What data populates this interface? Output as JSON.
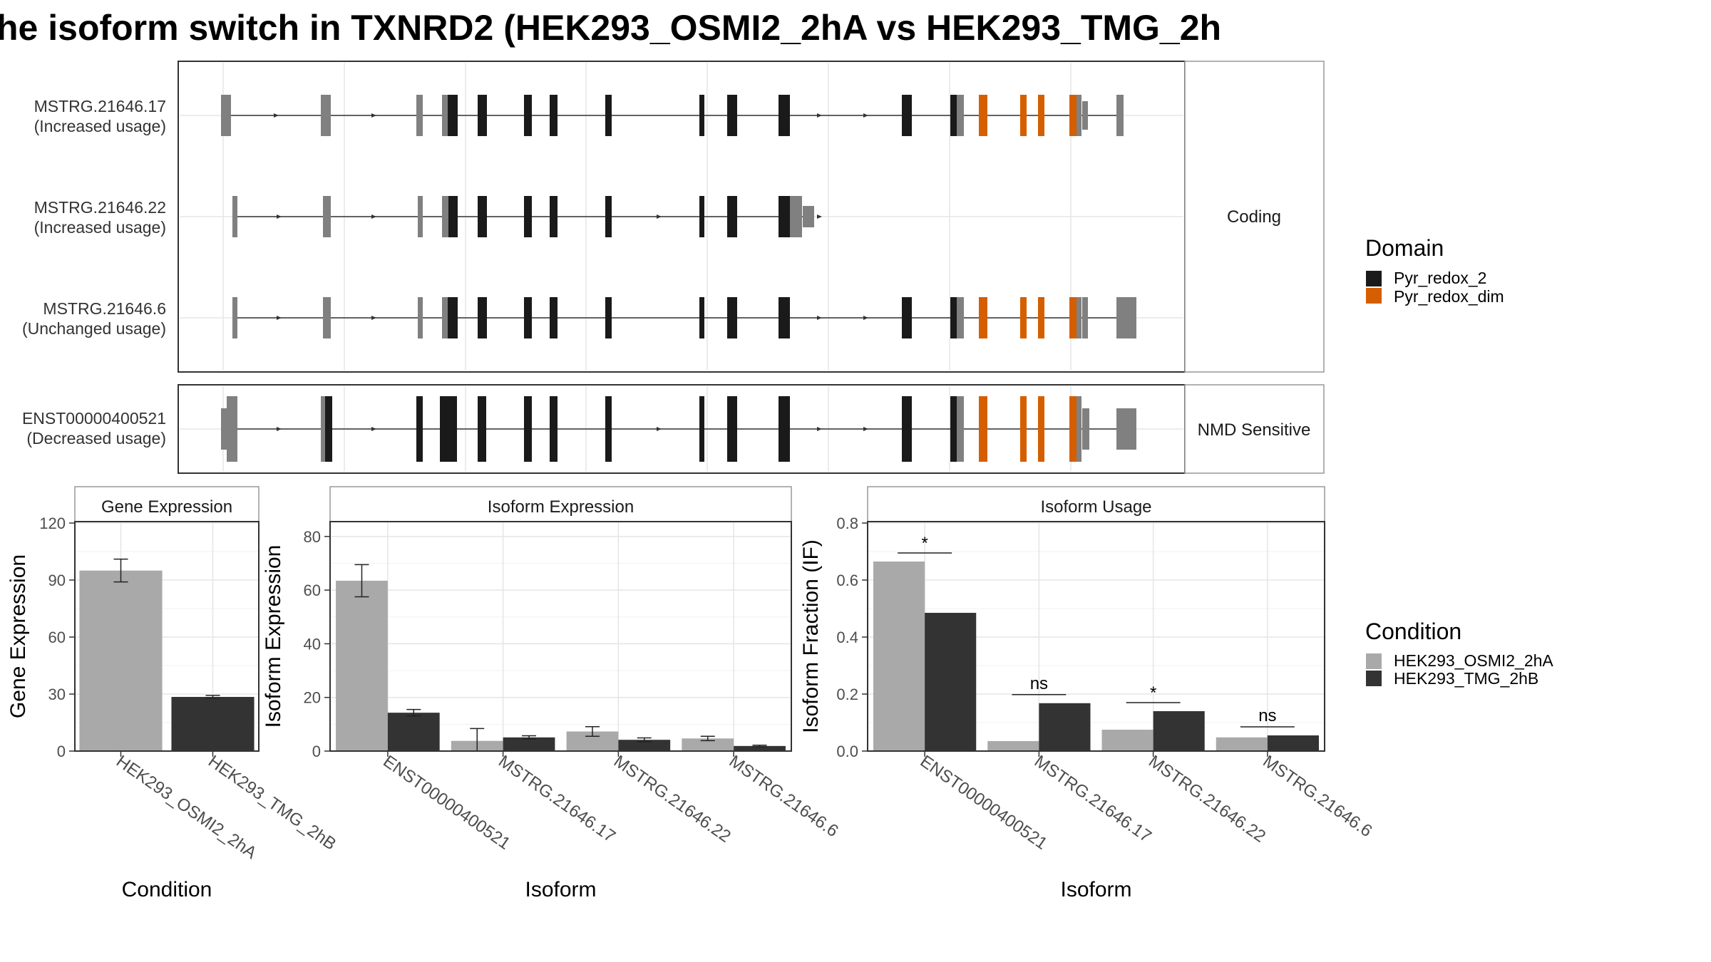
{
  "title": "he isoform switch in TXNRD2 (HEK293_OSMI2_2hA vs HEK293_TMG_2h",
  "colors": {
    "domain_pyr_redox_2": "#1a1a1a",
    "domain_pyr_redox_dim": "#d55e00",
    "cond_a": "#a9a9a9",
    "cond_b": "#333333",
    "exon_plain": "#808080",
    "panel_border": "#333333",
    "strip_border": "#999999",
    "grid": "#e5e5e5"
  },
  "transcripts": {
    "groups": [
      {
        "label": "Coding",
        "rows": [
          0,
          1,
          2
        ]
      },
      {
        "label": "NMD Sensitive",
        "rows": [
          3
        ]
      }
    ],
    "rows": [
      {
        "id": "MSTRG.21646.17",
        "usage": "(Increased usage)"
      },
      {
        "id": "MSTRG.21646.22",
        "usage": "(Increased usage)"
      },
      {
        "id": "MSTRG.21646.6",
        "usage": "(Unchanged usage)"
      },
      {
        "id": "ENST00000400521",
        "usage": "(Decreased usage)"
      }
    ]
  },
  "legend_domain": {
    "title": "Domain",
    "items": [
      {
        "label": "Pyr_redox_2",
        "color": "#1a1a1a"
      },
      {
        "label": "Pyr_redox_dim",
        "color": "#d55e00"
      }
    ]
  },
  "legend_condition": {
    "title": "Condition",
    "items": [
      {
        "label": "HEK293_OSMI2_2hA",
        "color": "#a9a9a9"
      },
      {
        "label": "HEK293_TMG_2hB",
        "color": "#333333"
      }
    ]
  },
  "chart_data": [
    {
      "type": "bar",
      "title": "Gene Expression",
      "xlabel": "Condition",
      "ylabel": "Gene Expression",
      "ylim": [
        0,
        120
      ],
      "yticks": [
        0,
        30,
        60,
        90,
        120
      ],
      "categories": [
        "HEK293_OSMI2_2hA",
        "HEK293_TMG_2hB"
      ],
      "values": [
        95,
        28.5
      ],
      "errors": [
        [
          89,
          101
        ],
        [
          27.8,
          29.3
        ]
      ],
      "colors": [
        "#a9a9a9",
        "#333333"
      ]
    },
    {
      "type": "bar",
      "title": "Isoform Expression",
      "xlabel": "Isoform",
      "ylabel": "Isoform Expression",
      "ylim": [
        0,
        85
      ],
      "yticks": [
        0,
        20,
        40,
        60,
        80
      ],
      "categories": [
        "ENST00000400521",
        "MSTRG.21646.17",
        "MSTRG.21646.22",
        "MSTRG.21646.6"
      ],
      "series": [
        {
          "name": "HEK293_OSMI2_2hA",
          "values": [
            63.5,
            3.8,
            7.3,
            4.7
          ],
          "errors": [
            [
              57.5,
              69.5
            ],
            [
              0,
              8.4
            ],
            [
              5.5,
              9.1
            ],
            [
              3.9,
              5.5
            ]
          ]
        },
        {
          "name": "HEK293_TMG_2hB",
          "values": [
            14.3,
            5.1,
            4.2,
            1.9
          ],
          "errors": [
            [
              13.1,
              15.5
            ],
            [
              4.5,
              5.7
            ],
            [
              3.5,
              4.9
            ],
            [
              1.6,
              2.2
            ]
          ]
        }
      ]
    },
    {
      "type": "bar",
      "title": "Isoform Usage",
      "xlabel": "Isoform",
      "ylabel": "Isoform Fraction (IF)",
      "ylim": [
        0,
        0.8
      ],
      "yticks": [
        0.0,
        0.2,
        0.4,
        0.6,
        0.8
      ],
      "ytick_labels": [
        "0.0",
        "0.2",
        "0.4",
        "0.6",
        "0.8"
      ],
      "categories": [
        "ENST00000400521",
        "MSTRG.21646.17",
        "MSTRG.21646.22",
        "MSTRG.21646.6"
      ],
      "series": [
        {
          "name": "HEK293_OSMI2_2hA",
          "values": [
            0.665,
            0.035,
            0.075,
            0.048
          ]
        },
        {
          "name": "HEK293_TMG_2hB",
          "values": [
            0.485,
            0.168,
            0.14,
            0.055
          ]
        }
      ],
      "significance": [
        "*",
        "ns",
        "*",
        "ns"
      ]
    }
  ]
}
